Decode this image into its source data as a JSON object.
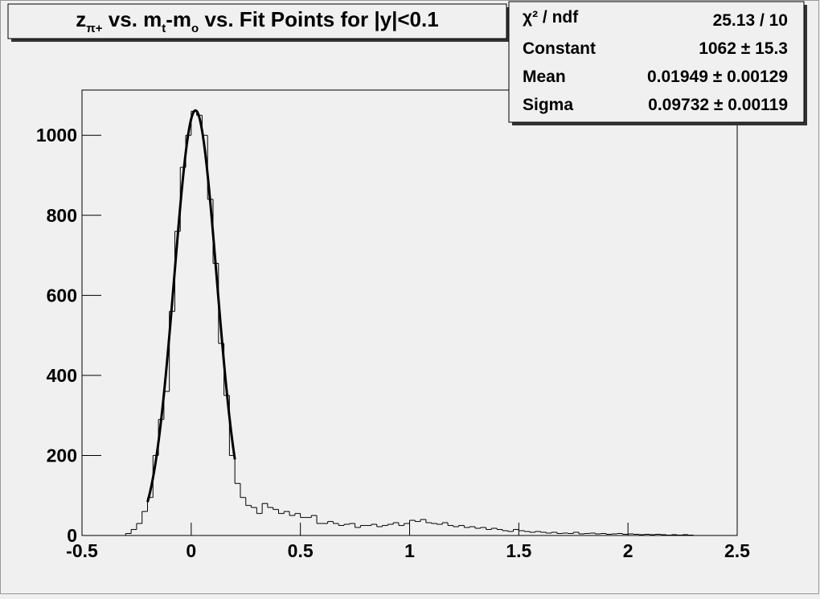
{
  "chart_data": {
    "type": "histogram",
    "title": [
      {
        "text": "z"
      },
      {
        "text": "π+",
        "sub": true
      },
      {
        "text": " vs. m"
      },
      {
        "text": "t",
        "sub": true
      },
      {
        "text": "-m"
      },
      {
        "text": "o",
        "sub": true
      },
      {
        "text": " vs. Fit Points for |y|<0.1"
      }
    ],
    "bins": [
      -0.3,
      -0.275,
      -0.25,
      -0.225,
      -0.2,
      -0.175,
      -0.15,
      -0.125,
      -0.1,
      -0.075,
      -0.05,
      -0.025,
      0,
      0.025,
      0.05,
      0.075,
      0.1,
      0.125,
      0.15,
      0.175,
      0.2,
      0.225,
      0.25,
      0.275,
      0.3,
      0.325,
      0.35,
      0.375,
      0.4,
      0.425,
      0.45,
      0.475,
      0.5,
      0.525,
      0.55,
      0.575,
      0.6,
      0.625,
      0.65,
      0.675,
      0.7,
      0.725,
      0.75,
      0.775,
      0.8,
      0.825,
      0.85,
      0.875,
      0.9,
      0.925,
      0.95,
      0.975,
      1,
      1.025,
      1.05,
      1.075,
      1.1,
      1.125,
      1.15,
      1.175,
      1.2,
      1.225,
      1.25,
      1.275,
      1.3,
      1.325,
      1.35,
      1.375,
      1.4,
      1.425,
      1.45,
      1.475,
      1.5,
      1.525,
      1.55,
      1.575,
      1.6,
      1.625,
      1.65,
      1.675,
      1.7,
      1.725,
      1.75,
      1.775,
      1.8,
      1.825,
      1.85,
      1.875,
      1.9,
      1.925,
      1.95,
      1.975,
      2,
      2.025,
      2.05,
      2.075,
      2.1,
      2.125,
      2.15,
      2.175,
      2.2,
      2.225,
      2.25,
      2.275,
      2.3
    ],
    "values": [
      5,
      15,
      30,
      60,
      95,
      200,
      290,
      360,
      560,
      760,
      920,
      1000,
      1060,
      1050,
      1000,
      840,
      680,
      480,
      350,
      200,
      130,
      95,
      75,
      70,
      55,
      80,
      70,
      65,
      55,
      60,
      50,
      55,
      45,
      45,
      50,
      30,
      30,
      35,
      30,
      25,
      28,
      30,
      20,
      25,
      25,
      28,
      22,
      25,
      28,
      32,
      25,
      30,
      38,
      35,
      40,
      32,
      30,
      28,
      32,
      25,
      22,
      25,
      20,
      22,
      18,
      20,
      15,
      18,
      15,
      12,
      10,
      15,
      12,
      10,
      8,
      10,
      8,
      6,
      8,
      5,
      6,
      5,
      8,
      4,
      5,
      6,
      4,
      5,
      3,
      4,
      5,
      3,
      4,
      3,
      2,
      3,
      2,
      3,
      2,
      1,
      2,
      1,
      2,
      1
    ],
    "color": "#000000",
    "fit": {
      "constant": 1062,
      "mean": 0.01949,
      "sigma": 0.09732,
      "range": [
        -0.2,
        0.2
      ]
    },
    "stats": [
      {
        "label": "χ² / ndf",
        "value": "25.13 / 10"
      },
      {
        "label": "Constant",
        "value": "1062 ± 15.3"
      },
      {
        "label": "Mean",
        "value": "0.01949 ± 0.00129"
      },
      {
        "label": "Sigma",
        "value": "0.09732 ± 0.00119"
      }
    ],
    "xlim": [
      -0.5,
      2.5
    ],
    "xticks": [
      -0.5,
      0,
      0.5,
      1,
      1.5,
      2,
      2.5
    ],
    "ylim": [
      0,
      1113
    ],
    "yticks": [
      0,
      200,
      400,
      600,
      800,
      1000
    ]
  }
}
